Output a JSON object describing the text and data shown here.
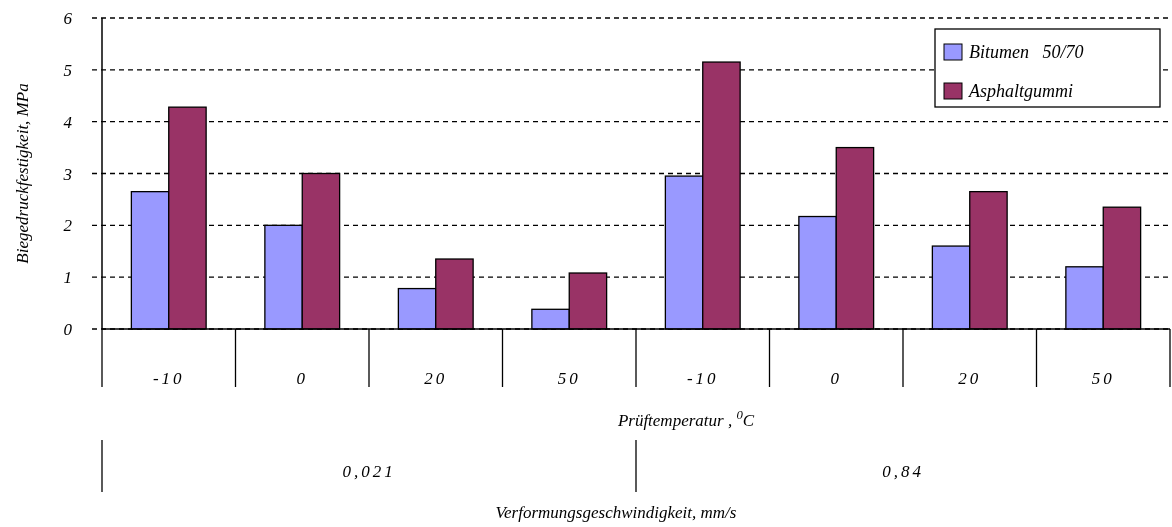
{
  "chart_data": {
    "type": "bar",
    "ylabel": "Biegedruckfestigkeit,  MPa",
    "xlabel": "Prüftemperatur ,  $^{0}$C",
    "categories": [
      "-10",
      "0",
      "20",
      "50",
      "-10",
      "0",
      "20",
      "50"
    ],
    "series": [
      {
        "name": "Bitumen   50/70",
        "color": "#9999ff",
        "values": [
          2.65,
          2.0,
          0.78,
          0.38,
          2.95,
          2.17,
          1.6,
          1.2
        ]
      },
      {
        "name": "Asphaltgummi",
        "color": "#993366",
        "values": [
          4.28,
          3.0,
          1.35,
          1.08,
          5.15,
          3.5,
          2.65,
          2.35
        ]
      }
    ],
    "ylim": [
      0,
      6
    ],
    "yticks": [
      0,
      1,
      2,
      3,
      4,
      5,
      6
    ],
    "grid": "y",
    "legend": "top right",
    "annotations": [
      "0,021",
      "0,84",
      "Verformungsgeschwindigkeit,  mm/s"
    ]
  }
}
